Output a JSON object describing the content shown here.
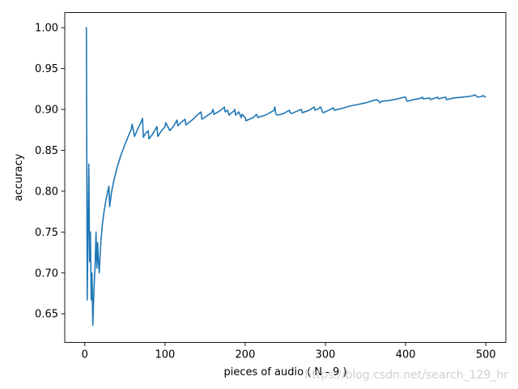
{
  "chart_data": {
    "type": "line",
    "title": "",
    "xlabel": "pieces of audio ( N - 9 )",
    "ylabel": "accuracy",
    "xlim": [
      -25,
      525
    ],
    "ylim": [
      0.615,
      1.0185
    ],
    "xticks": [
      0,
      100,
      200,
      300,
      400,
      500
    ],
    "yticks": [
      0.65,
      0.7,
      0.75,
      0.8,
      0.85,
      0.9,
      0.95,
      1.0
    ],
    "grid": false,
    "legend": "none",
    "series": [
      {
        "color": "#1f77b4",
        "x": [
          1,
          2,
          3,
          4,
          5,
          6,
          7,
          8,
          9,
          10,
          11,
          12,
          13,
          14,
          15,
          16,
          17,
          18,
          19,
          20,
          22,
          24,
          26,
          28,
          30,
          31,
          33,
          36,
          40,
          45,
          50,
          55,
          58,
          59,
          62,
          66,
          70,
          72,
          73,
          76,
          79,
          80,
          84,
          90,
          91,
          95,
          100,
          101,
          106,
          111,
          115,
          116,
          120,
          125,
          126,
          135,
          140,
          145,
          146,
          152,
          158,
          160,
          161,
          168,
          172,
          174,
          175,
          178,
          180,
          183,
          186,
          187,
          188,
          190,
          192,
          195,
          196,
          200,
          201,
          205,
          210,
          214,
          216,
          218,
          225,
          231,
          236,
          237,
          238,
          240,
          248,
          255,
          256,
          258,
          265,
          270,
          271,
          280,
          286,
          287,
          290,
          294,
          296,
          297,
          300,
          306,
          310,
          311,
          320,
          330,
          340,
          350,
          360,
          364,
          365,
          366,
          368,
          370,
          380,
          390,
          398,
          400,
          401,
          402,
          410,
          420,
          421,
          422,
          430,
          431,
          440,
          441,
          445,
          450,
          451,
          460,
          470,
          480,
          485,
          486,
          490,
          495,
          497,
          498,
          500
        ],
        "y": [
          1.0,
          1.0,
          0.667,
          0.75,
          0.833,
          0.714,
          0.75,
          0.667,
          0.7,
          0.636,
          0.667,
          0.692,
          0.714,
          0.75,
          0.706,
          0.737,
          0.714,
          0.7,
          0.72,
          0.738,
          0.76,
          0.775,
          0.787,
          0.797,
          0.806,
          0.781,
          0.797,
          0.812,
          0.828,
          0.844,
          0.857,
          0.869,
          0.876,
          0.882,
          0.867,
          0.876,
          0.884,
          0.889,
          0.866,
          0.871,
          0.874,
          0.864,
          0.869,
          0.879,
          0.867,
          0.873,
          0.879,
          0.884,
          0.874,
          0.88,
          0.887,
          0.88,
          0.884,
          0.888,
          0.881,
          0.888,
          0.893,
          0.897,
          0.888,
          0.892,
          0.896,
          0.9,
          0.894,
          0.898,
          0.901,
          0.903,
          0.897,
          0.899,
          0.893,
          0.896,
          0.898,
          0.9,
          0.893,
          0.895,
          0.897,
          0.89,
          0.894,
          0.89,
          0.886,
          0.888,
          0.89,
          0.894,
          0.89,
          0.891,
          0.893,
          0.896,
          0.899,
          0.903,
          0.895,
          0.893,
          0.895,
          0.899,
          0.896,
          0.895,
          0.898,
          0.9,
          0.896,
          0.899,
          0.903,
          0.899,
          0.9,
          0.903,
          0.898,
          0.896,
          0.897,
          0.9,
          0.902,
          0.899,
          0.901,
          0.904,
          0.906,
          0.908,
          0.911,
          0.912,
          0.911,
          0.911,
          0.908,
          0.91,
          0.911,
          0.913,
          0.915,
          0.915,
          0.912,
          0.91,
          0.912,
          0.914,
          0.915,
          0.913,
          0.914,
          0.912,
          0.915,
          0.913,
          0.914,
          0.915,
          0.912,
          0.914,
          0.915,
          0.916,
          0.917,
          0.918,
          0.915,
          0.916,
          0.917,
          0.916,
          0.915
        ]
      }
    ]
  },
  "watermark": "https://blog.csdn.net/search_129_hr"
}
